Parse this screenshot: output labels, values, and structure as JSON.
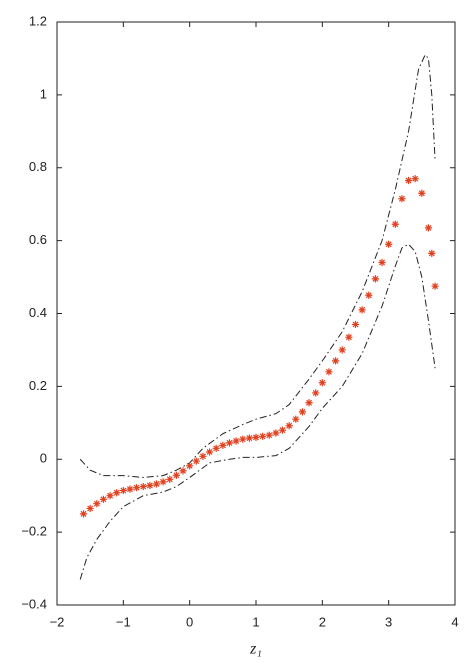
{
  "chart_data": {
    "type": "line",
    "xlabel": "z₁",
    "xlim": [
      -2,
      4
    ],
    "xticks": [
      {
        "value": -2,
        "label": "−2"
      },
      {
        "value": -1,
        "label": "−1"
      },
      0,
      1,
      2,
      3,
      4
    ],
    "ylim": [
      -0.4,
      1.2
    ],
    "yticks": [
      {
        "value": -0.4,
        "label": "−0.4"
      },
      {
        "value": -0.2,
        "label": "−0.2"
      },
      0,
      0.2,
      0.4,
      0.6,
      0.8,
      1,
      1.2
    ],
    "series": [
      {
        "color": "#222222",
        "linestyle": "dashdot",
        "x": [
          -1.65,
          -1.5,
          -1.3,
          -1.0,
          -0.7,
          -0.4,
          -0.2,
          0,
          0.2,
          0.5,
          0.8,
          1.0,
          1.3,
          1.5,
          1.8,
          2.0,
          2.3,
          2.6,
          2.9,
          3.1,
          3.3,
          3.45,
          3.55,
          3.6,
          3.65,
          3.7
        ],
        "values": [
          0.0,
          -0.03,
          -0.045,
          -0.045,
          -0.05,
          -0.045,
          -0.03,
          -0.01,
          0.03,
          0.07,
          0.095,
          0.11,
          0.125,
          0.15,
          0.22,
          0.27,
          0.35,
          0.46,
          0.6,
          0.74,
          0.9,
          1.07,
          1.11,
          1.1,
          1.0,
          0.82
        ]
      },
      {
        "color": "#222222",
        "linestyle": "dashdot",
        "x": [
          -1.65,
          -1.55,
          -1.4,
          -1.2,
          -1.0,
          -0.7,
          -0.4,
          -0.2,
          0,
          0.3,
          0.6,
          0.8,
          1.0,
          1.3,
          1.5,
          1.8,
          2.0,
          2.3,
          2.6,
          2.9,
          3.1,
          3.2,
          3.3,
          3.4,
          3.5,
          3.6,
          3.7
        ],
        "values": [
          -0.33,
          -0.27,
          -0.22,
          -0.17,
          -0.13,
          -0.1,
          -0.09,
          -0.075,
          -0.05,
          -0.01,
          0.0,
          0.005,
          0.005,
          0.01,
          0.03,
          0.09,
          0.14,
          0.2,
          0.29,
          0.42,
          0.53,
          0.58,
          0.59,
          0.57,
          0.5,
          0.38,
          0.25
        ]
      },
      {
        "color": "#e2401f",
        "marker": "asterisk",
        "x": [
          -1.6,
          -1.5,
          -1.4,
          -1.3,
          -1.2,
          -1.1,
          -1.0,
          -0.9,
          -0.8,
          -0.7,
          -0.6,
          -0.5,
          -0.4,
          -0.3,
          -0.2,
          -0.1,
          0,
          0.1,
          0.2,
          0.3,
          0.4,
          0.5,
          0.6,
          0.7,
          0.8,
          0.9,
          1.0,
          1.1,
          1.2,
          1.3,
          1.4,
          1.5,
          1.6,
          1.7,
          1.8,
          1.9,
          2.0,
          2.1,
          2.2,
          2.3,
          2.4,
          2.5,
          2.6,
          2.7,
          2.8,
          2.9,
          3.0,
          3.1,
          3.2,
          3.3,
          3.4,
          3.5,
          3.6,
          3.65,
          3.7
        ],
        "values": [
          -0.15,
          -0.135,
          -0.122,
          -0.11,
          -0.1,
          -0.092,
          -0.086,
          -0.082,
          -0.078,
          -0.075,
          -0.072,
          -0.068,
          -0.062,
          -0.055,
          -0.044,
          -0.032,
          -0.018,
          -0.005,
          0.008,
          0.02,
          0.03,
          0.038,
          0.045,
          0.05,
          0.055,
          0.058,
          0.06,
          0.063,
          0.066,
          0.072,
          0.08,
          0.092,
          0.11,
          0.13,
          0.155,
          0.182,
          0.21,
          0.24,
          0.27,
          0.3,
          0.335,
          0.37,
          0.41,
          0.45,
          0.495,
          0.54,
          0.59,
          0.645,
          0.715,
          0.765,
          0.77,
          0.73,
          0.635,
          0.565,
          0.475
        ]
      }
    ]
  }
}
